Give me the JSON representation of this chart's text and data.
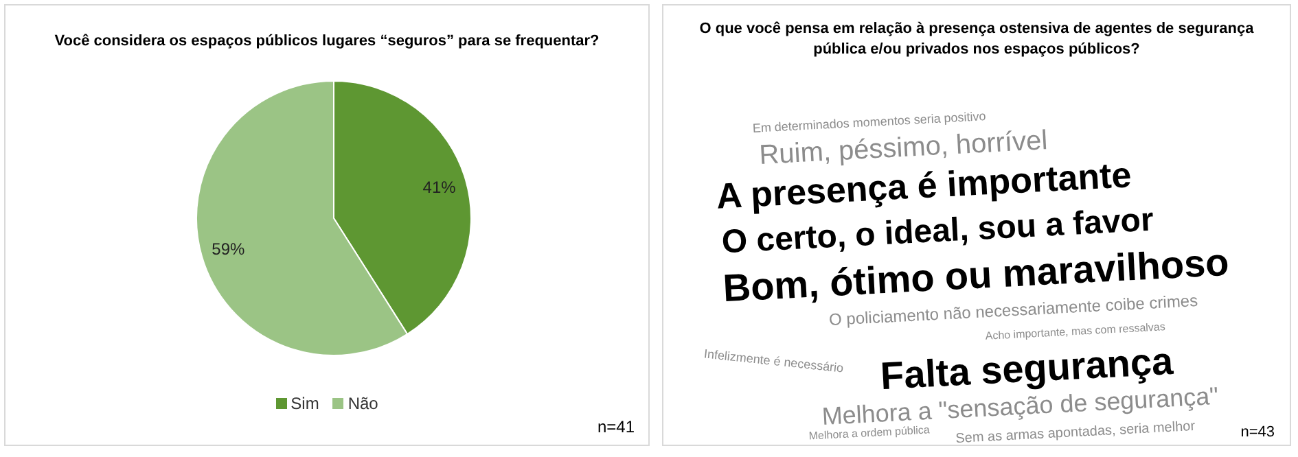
{
  "chart_data": [
    {
      "type": "pie",
      "title": "Você considera os espaços públicos lugares “seguros” para se frequentar?",
      "categories": [
        "Sim",
        "Não"
      ],
      "values": [
        41,
        59
      ],
      "colors": [
        "#5e9732",
        "#9bc485"
      ],
      "value_labels": [
        "41%",
        "59%"
      ],
      "legend": "bottom",
      "annotations": [
        "n=41"
      ]
    },
    {
      "type": "other",
      "title": "O que você pensa em relação à presença ostensiva de agentes de segurança pública e/ou privados nos espaços públicos?",
      "annotations": [
        "Em determinados momentos seria positivo",
        "Ruim, péssimo, horrível",
        "A  presença é importante",
        "O certo,  o ideal, sou a favor",
        "Bom, ótimo ou maravilhoso",
        "O policiamento não necessariamente coibe crimes",
        "Acho importante, mas com ressalvas",
        "Falta segurança",
        "Infelizmente é necessário",
        "Melhora a \"sensação de segurança\"",
        "Melhora a ordem pública",
        "Sem as armas apontadas, seria melhor",
        "n=43"
      ]
    }
  ]
}
